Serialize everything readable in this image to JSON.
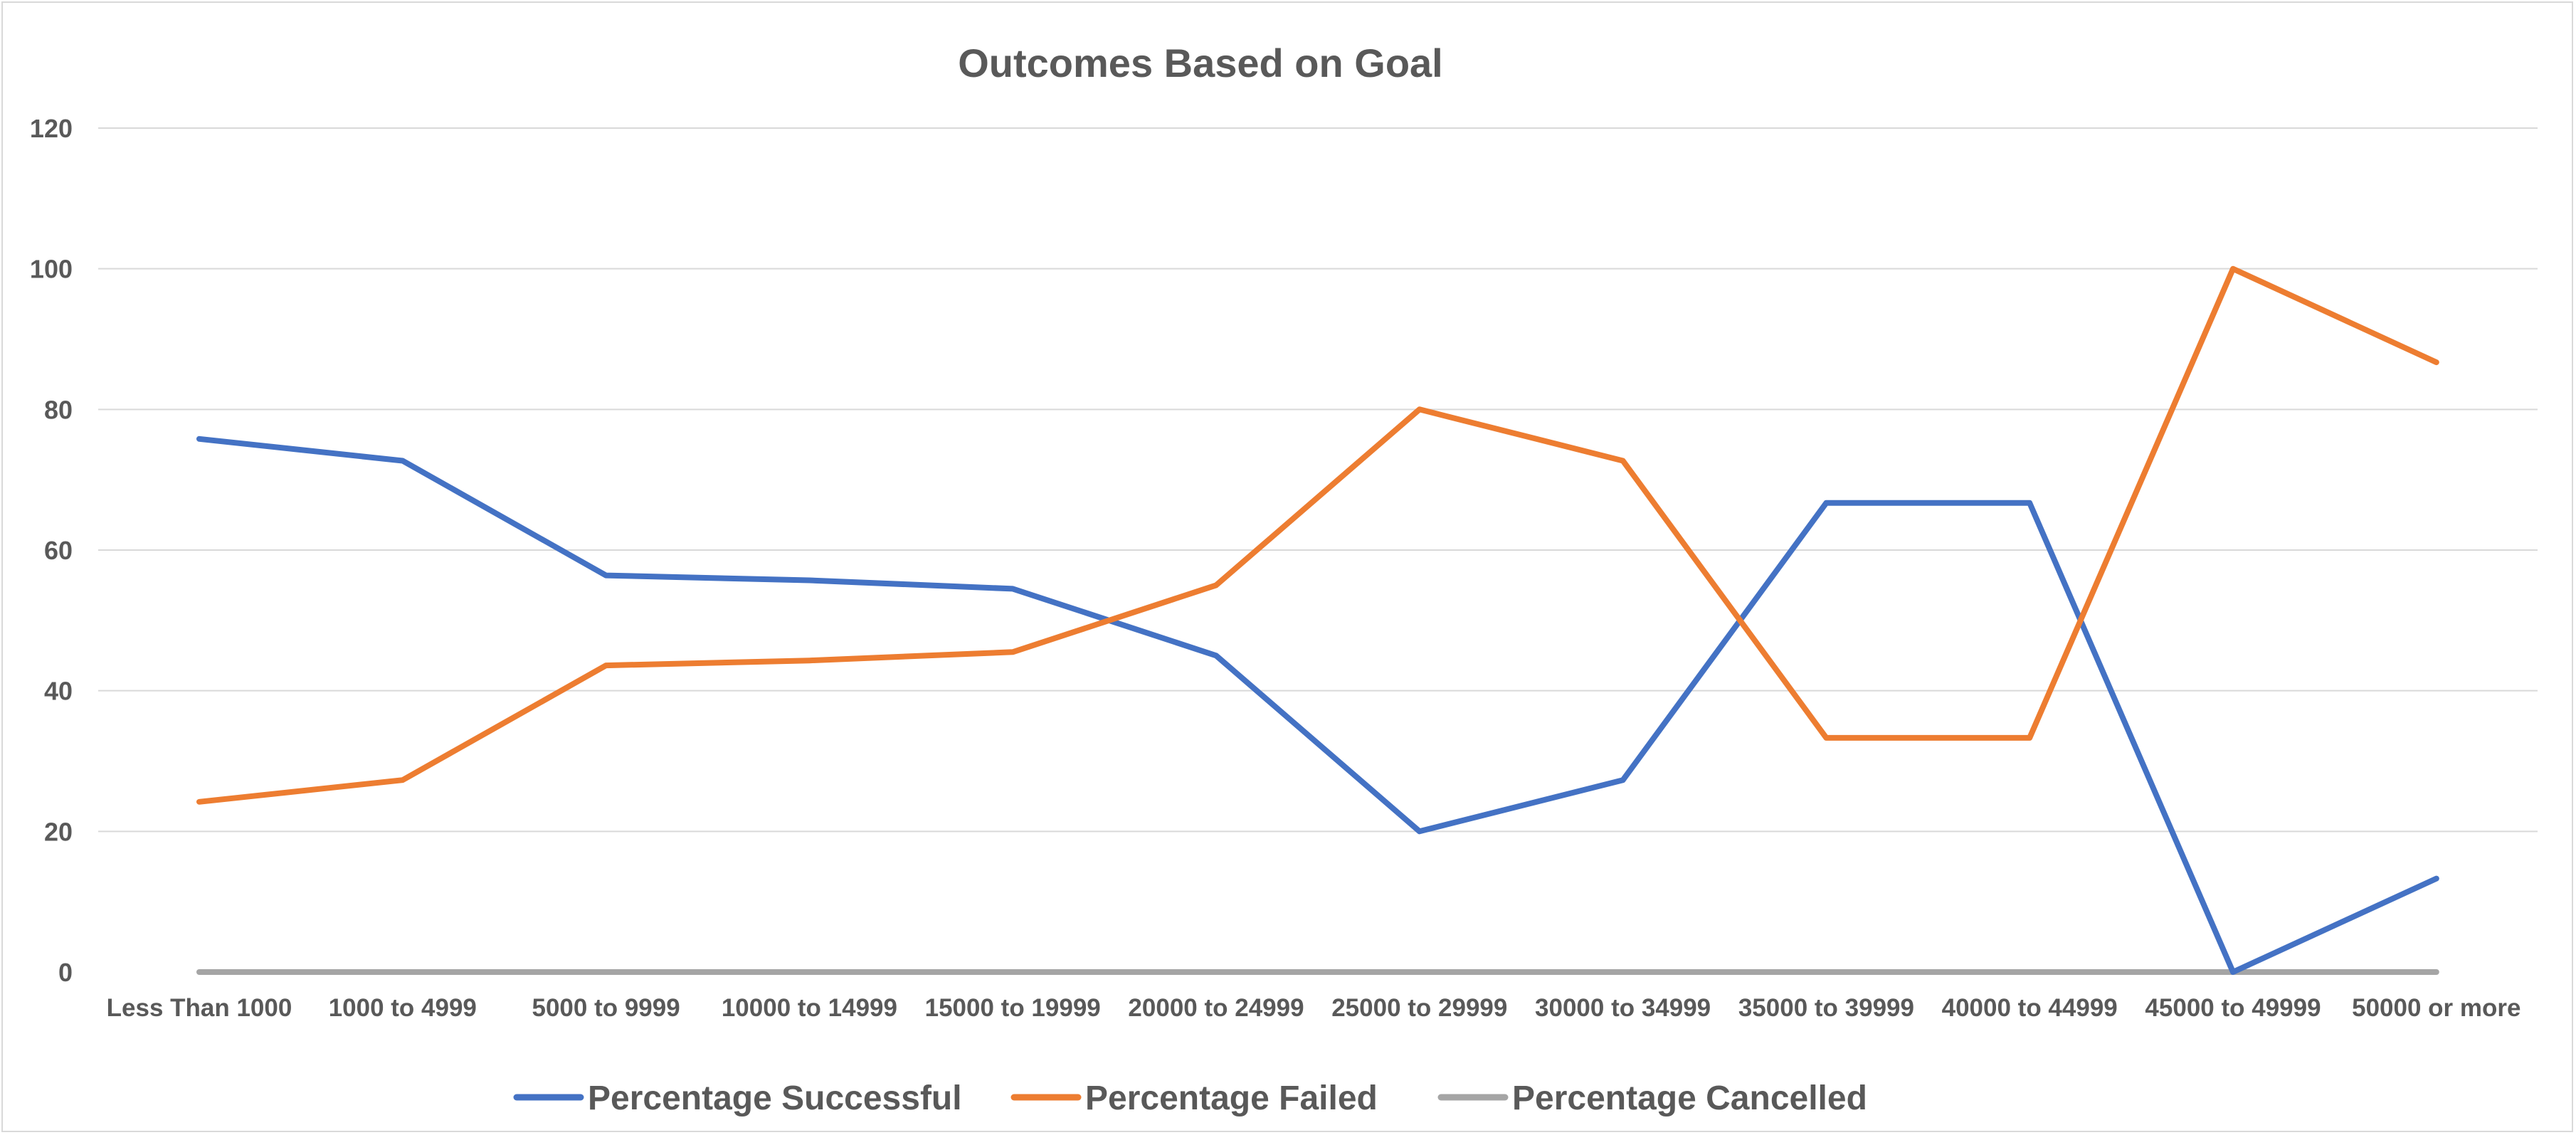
{
  "chart_data": {
    "type": "line",
    "title": "Outcomes Based on Goal",
    "xlabel": "",
    "ylabel": "",
    "ylim": [
      0,
      120
    ],
    "yticks": [
      0,
      20,
      40,
      60,
      80,
      100,
      120
    ],
    "grid": true,
    "legend_position": "bottom",
    "categories": [
      "Less Than 1000",
      "1000 to 4999",
      "5000 to 9999",
      "10000 to 14999",
      "15000 to 19999",
      "20000 to 24999",
      "25000 to 29999",
      "30000 to 34999",
      "35000 to 39999",
      "40000 to 44999",
      "45000 to 49999",
      "50000 or more"
    ],
    "series": [
      {
        "name": "Percentage Successful",
        "color": "#4472c4",
        "values": [
          75.8,
          72.7,
          56.4,
          55.7,
          54.5,
          45,
          20,
          27.3,
          66.7,
          66.7,
          0,
          13.3
        ]
      },
      {
        "name": "Percentage Failed",
        "color": "#ed7d31",
        "values": [
          24.2,
          27.3,
          43.6,
          44.3,
          45.5,
          55,
          80,
          72.7,
          33.3,
          33.3,
          100,
          86.7
        ]
      },
      {
        "name": "Percentage Cancelled",
        "color": "#a5a5a5",
        "values": [
          0,
          0,
          0,
          0,
          0,
          0,
          0,
          0,
          0,
          0,
          0,
          0
        ]
      }
    ]
  }
}
